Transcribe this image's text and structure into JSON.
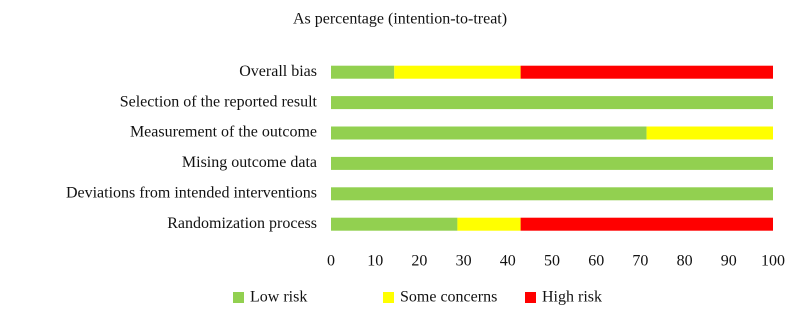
{
  "chart_data": {
    "type": "stacked-bar-horizontal",
    "title": "As percentage (intention-to-treat)",
    "categories": [
      "Overall bias",
      "Selection of the reported result",
      "Measurement of the outcome",
      "Mising outcome data",
      "Deviations from intended interventions",
      "Randomization process"
    ],
    "series": [
      {
        "name": "Low risk",
        "color": "#92d050",
        "values": [
          14.3,
          100,
          71.4,
          100,
          100,
          28.6
        ]
      },
      {
        "name": "Some concerns",
        "color": "#ffff00",
        "values": [
          28.6,
          0,
          28.6,
          0,
          0,
          14.3
        ]
      },
      {
        "name": "High risk",
        "color": "#ff0000",
        "values": [
          57.1,
          0,
          0,
          0,
          0,
          57.1
        ]
      }
    ],
    "xlim": [
      0,
      100
    ],
    "xticks": [
      0,
      10,
      20,
      30,
      40,
      50,
      60,
      70,
      80,
      90,
      100
    ]
  }
}
